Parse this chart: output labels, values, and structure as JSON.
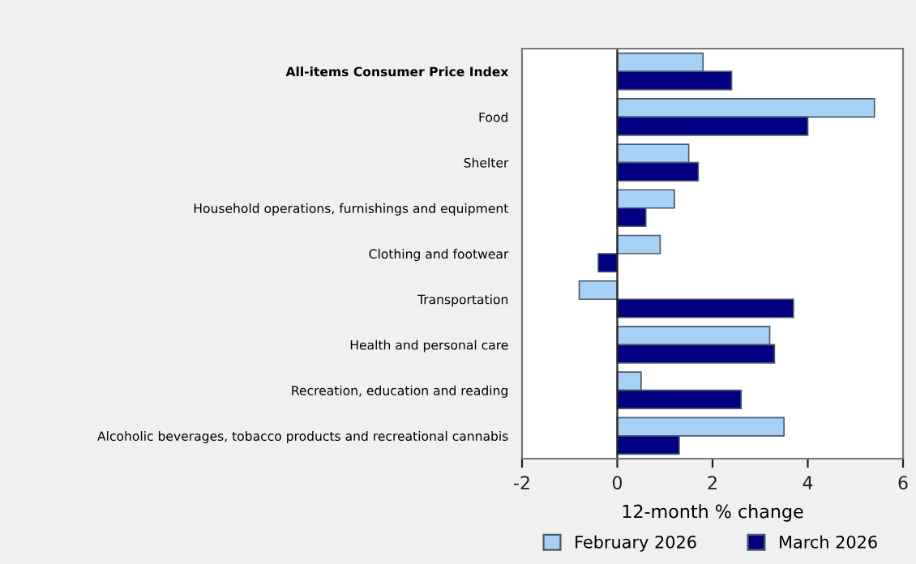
{
  "chart_data": {
    "type": "bar",
    "orientation": "horizontal",
    "xlabel": "12-month % change",
    "categories": [
      "All-items Consumer Price Index",
      "Food",
      "Shelter",
      "Household operations, furnishings and equipment",
      "Clothing and footwear",
      "Transportation",
      "Health and personal care",
      "Recreation, education and reading",
      "Alcoholic beverages, tobacco products and recreational cannabis"
    ],
    "series": [
      {
        "name": "February 2026",
        "color": "#a6d0f5",
        "values": [
          1.8,
          5.4,
          1.5,
          1.2,
          0.9,
          -0.8,
          3.2,
          0.5,
          3.5
        ]
      },
      {
        "name": "March 2026",
        "color": "#000080",
        "values": [
          2.4,
          4.0,
          1.7,
          0.6,
          -0.4,
          3.7,
          3.3,
          2.6,
          1.3
        ]
      }
    ],
    "xlim": [
      -2,
      6
    ],
    "xticks": [
      -2,
      0,
      2,
      4,
      6
    ],
    "ref_lines": [
      {
        "axis": "x",
        "value": 0,
        "color": "#222222"
      }
    ],
    "grid": false,
    "legend": "bottom"
  }
}
